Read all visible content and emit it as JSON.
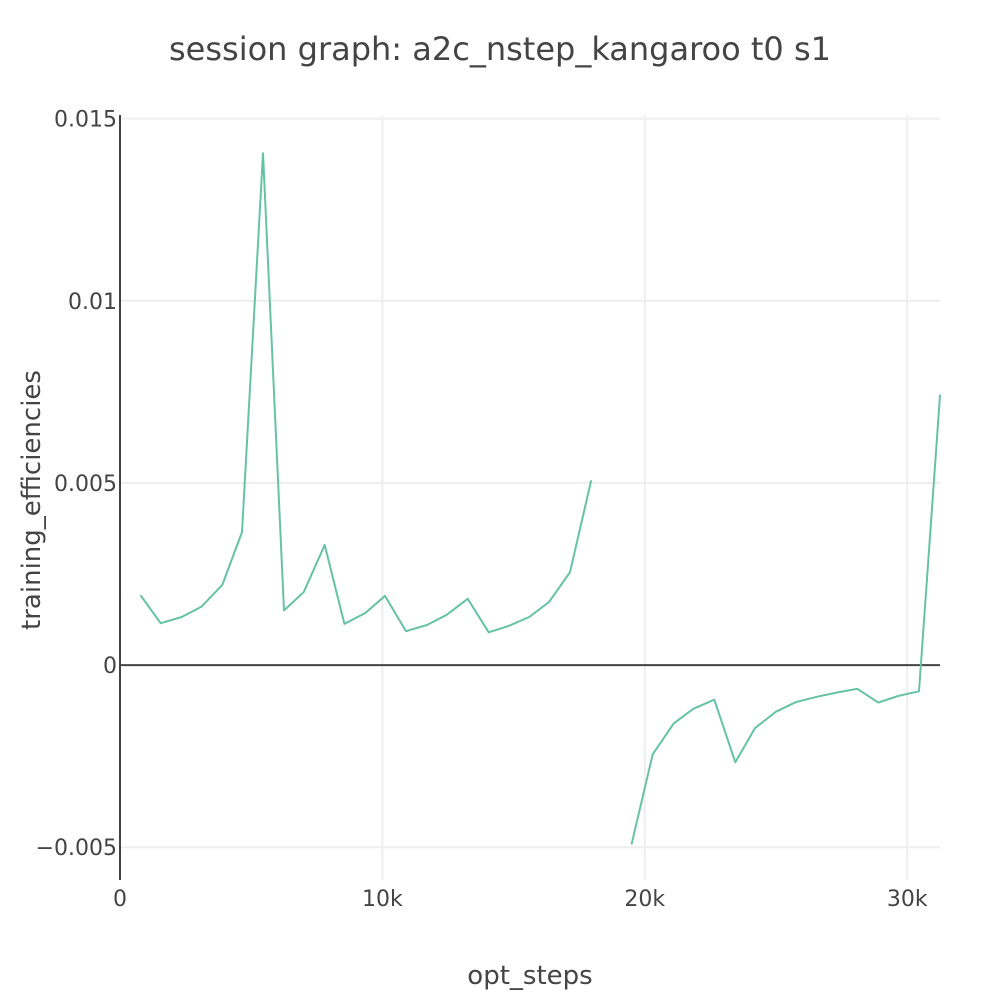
{
  "chart_data": {
    "type": "line",
    "title": "session graph: a2c_nstep_kangaroo t0 s1",
    "xlabel": "opt_steps",
    "ylabel": "training_efficiencies",
    "xlim": [
      0,
      31250
    ],
    "ylim": [
      -0.0059,
      0.0151
    ],
    "x_ticks": [
      {
        "value": 0,
        "label": "0"
      },
      {
        "value": 10000,
        "label": "10k"
      },
      {
        "value": 20000,
        "label": "20k"
      },
      {
        "value": 30000,
        "label": "30k"
      }
    ],
    "y_ticks": [
      {
        "value": -0.005,
        "label": "−0.005"
      },
      {
        "value": 0,
        "label": "0"
      },
      {
        "value": 0.005,
        "label": "0.005"
      },
      {
        "value": 0.01,
        "label": "0.01"
      },
      {
        "value": 0.015,
        "label": "0.015"
      }
    ],
    "grid": true,
    "legend": "none",
    "series": [
      {
        "color": "#66c2a5",
        "segments": [
          [
            [
              800,
              0.0019
            ],
            [
              1550,
              0.00115
            ],
            [
              2350,
              0.00132
            ],
            [
              3100,
              0.0016
            ],
            [
              3900,
              0.0022
            ],
            [
              4650,
              0.00365
            ],
            [
              5450,
              0.01405
            ],
            [
              6250,
              0.0015
            ],
            [
              7000,
              0.002
            ],
            [
              7800,
              0.0033
            ],
            [
              8550,
              0.00113
            ],
            [
              9350,
              0.00143
            ],
            [
              10100,
              0.0019
            ],
            [
              10900,
              0.00093
            ],
            [
              11700,
              0.0011
            ],
            [
              12450,
              0.00138
            ],
            [
              13250,
              0.00182
            ],
            [
              14050,
              0.0009
            ],
            [
              14800,
              0.00107
            ],
            [
              15600,
              0.00132
            ],
            [
              16350,
              0.00173
            ],
            [
              17150,
              0.00255
            ],
            [
              17950,
              0.00505
            ]
          ],
          [
            [
              19500,
              -0.0049
            ],
            [
              20300,
              -0.00245
            ],
            [
              21100,
              -0.0016
            ],
            [
              21850,
              -0.0012
            ],
            [
              22650,
              -0.00095
            ],
            [
              23450,
              -0.00267
            ],
            [
              24200,
              -0.00173
            ],
            [
              25000,
              -0.00128
            ],
            [
              25750,
              -0.00102
            ],
            [
              26550,
              -0.00087
            ],
            [
              27350,
              -0.00075
            ],
            [
              28100,
              -0.00065
            ],
            [
              28900,
              -0.00103
            ],
            [
              29650,
              -0.00085
            ],
            [
              30450,
              -0.00072
            ],
            [
              31250,
              0.0074
            ]
          ]
        ]
      }
    ]
  }
}
